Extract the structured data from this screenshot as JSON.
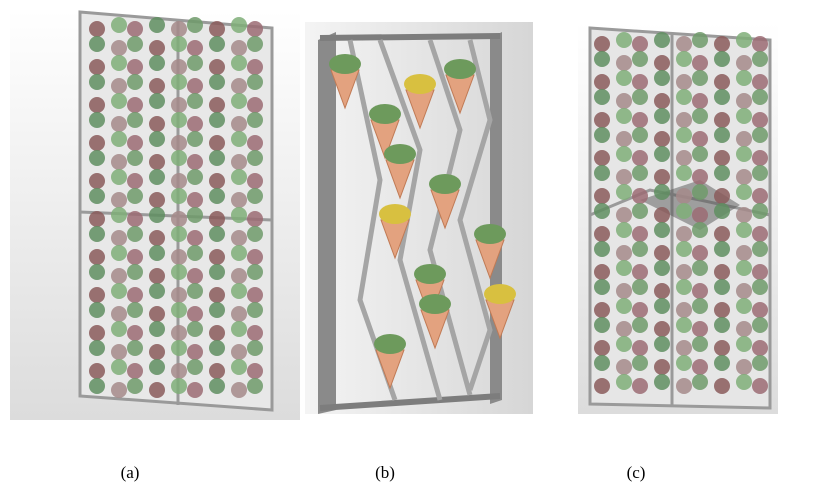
{
  "figure": {
    "panels": [
      {
        "caption": "(a)"
      },
      {
        "caption": "(b)"
      },
      {
        "caption": "(c)"
      }
    ]
  }
}
